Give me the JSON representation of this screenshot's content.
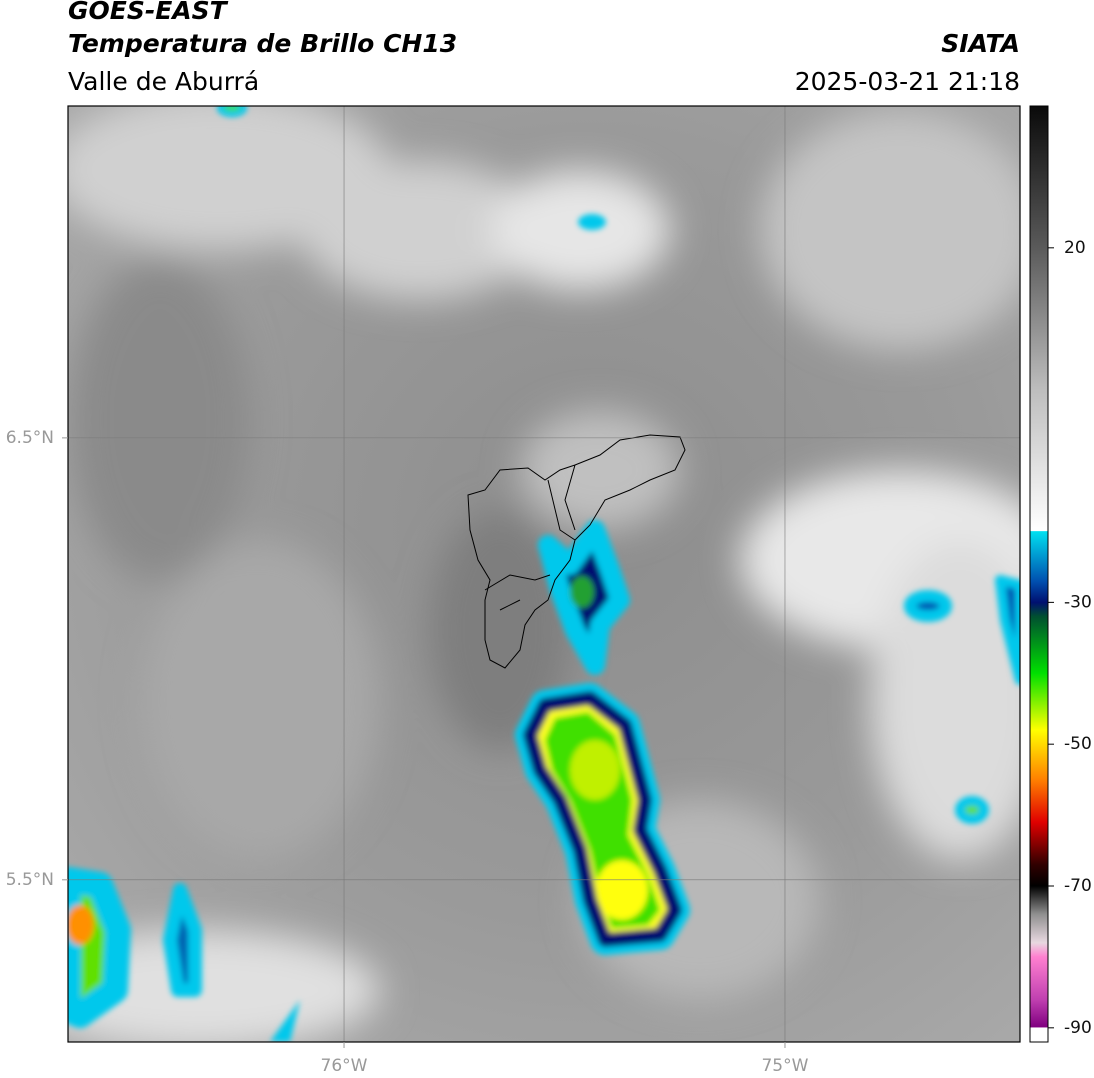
{
  "header": {
    "title": "GOES-EAST",
    "subtitle": "Temperatura de Brillo CH13",
    "source": "SIATA",
    "region": "Valle de Aburrá",
    "datetime": "2025-03-21 21:18"
  },
  "map": {
    "xlim": [
      -76.626,
      -74.467
    ],
    "ylim": [
      5.133,
      7.251
    ],
    "xticks": [
      {
        "value": -76,
        "label": "76°W"
      },
      {
        "value": -75,
        "label": "75°W"
      }
    ],
    "yticks": [
      {
        "value": 6.5,
        "label": "6.5°N"
      },
      {
        "value": 5.5,
        "label": "5.5°N"
      }
    ],
    "grid": true
  },
  "colorbar": {
    "lim": [
      -92,
      40
    ],
    "ticks": [
      20,
      -30,
      -50,
      -70,
      -90
    ],
    "colormap": [
      {
        "value": 40,
        "color": "#0a0a0a"
      },
      {
        "value": 20,
        "color": "#5a5a5a"
      },
      {
        "value": 0,
        "color": "#bdbdbd"
      },
      {
        "value": -19.9,
        "color": "#ffffff"
      },
      {
        "value": -20,
        "color": "#00e0f0"
      },
      {
        "value": -27,
        "color": "#0050b0"
      },
      {
        "value": -30,
        "color": "#001070"
      },
      {
        "value": -32,
        "color": "#005030"
      },
      {
        "value": -40,
        "color": "#00e000"
      },
      {
        "value": -48,
        "color": "#ffff00"
      },
      {
        "value": -55,
        "color": "#ff8000"
      },
      {
        "value": -61,
        "color": "#e00000"
      },
      {
        "value": -67,
        "color": "#300000"
      },
      {
        "value": -70,
        "color": "#000000"
      },
      {
        "value": -74,
        "color": "#909090"
      },
      {
        "value": -78,
        "color": "#e8d8e0"
      },
      {
        "value": -80,
        "color": "#ff80d0"
      },
      {
        "value": -86,
        "color": "#c040b0"
      },
      {
        "value": -89.9,
        "color": "#800080"
      },
      {
        "value": -90,
        "color": "#ffffff"
      },
      {
        "value": -92,
        "color": "#ffffff"
      }
    ]
  }
}
